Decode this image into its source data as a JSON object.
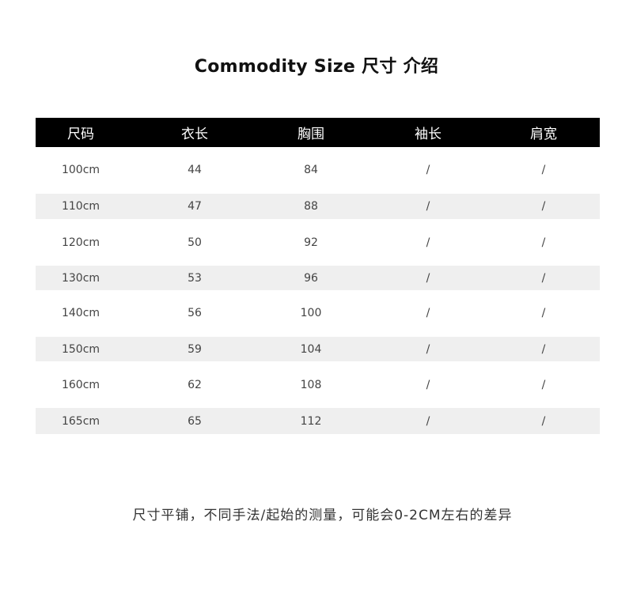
{
  "title": "Commodity Size  尺寸 介绍",
  "table": {
    "headers": [
      "尺码",
      "衣长",
      "胸围",
      "袖长",
      "肩宽"
    ],
    "rows": [
      [
        "100cm",
        "44",
        "84",
        "/",
        "/"
      ],
      [
        "110cm",
        "47",
        "88",
        "/",
        "/"
      ],
      [
        "120cm",
        "50",
        "92",
        "/",
        "/"
      ],
      [
        "130cm",
        "53",
        "96",
        "/",
        "/"
      ],
      [
        "140cm",
        "56",
        "100",
        "/",
        "/"
      ],
      [
        "150cm",
        "59",
        "104",
        "/",
        "/"
      ],
      [
        "160cm",
        "62",
        "108",
        "/",
        "/"
      ],
      [
        "165cm",
        "65",
        "112",
        "/",
        "/"
      ]
    ]
  },
  "footer": "尺寸平铺，不同手法/起始的测量，可能会0-2CM左右的差异",
  "colors": {
    "header_bg": "#000000",
    "stripe": "#efefef"
  }
}
